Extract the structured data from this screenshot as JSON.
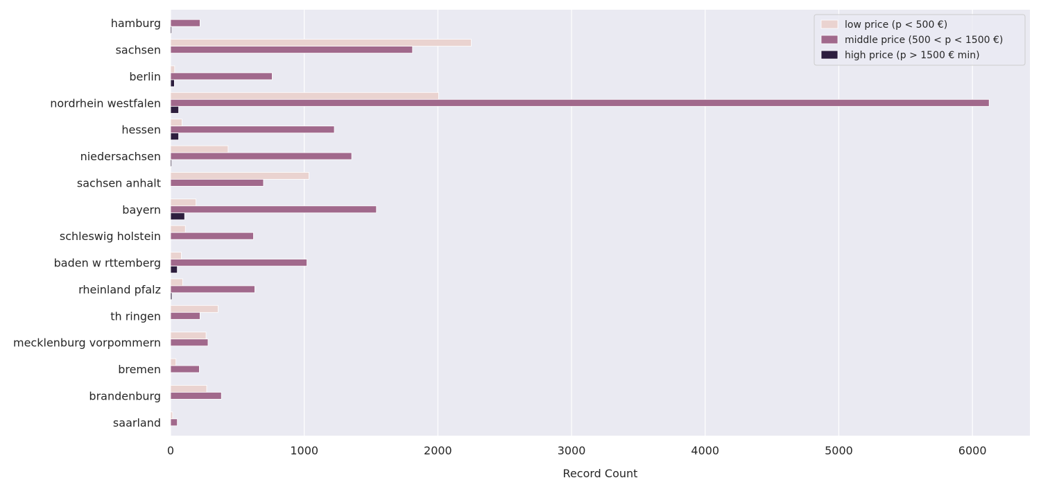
{
  "chart_data": {
    "type": "bar",
    "orientation": "horizontal",
    "categories": [
      "hamburg",
      "sachsen",
      "berlin",
      "nordrhein westfalen",
      "hessen",
      "niedersachsen",
      "sachsen anhalt",
      "bayern",
      "schleswig holstein",
      "baden w rttemberg",
      "rheinland pfalz",
      "th ringen",
      "mecklenburg vorpommern",
      "bremen",
      "brandenburg",
      "saarland"
    ],
    "series": [
      {
        "name": "low price (p < 500 €)",
        "color": "#ead3d0",
        "values": [
          0,
          2250,
          30,
          2005,
          85,
          430,
          1035,
          190,
          110,
          80,
          90,
          355,
          265,
          40,
          270,
          15
        ]
      },
      {
        "name": "middle price (500 < p < 1500 €)",
        "color": "#a1698c",
        "values": [
          220,
          1810,
          760,
          6125,
          1225,
          1355,
          695,
          1540,
          620,
          1020,
          630,
          220,
          280,
          215,
          380,
          50
        ]
      },
      {
        "name": "high price (p > 1500 € min)",
        "color": "#2d1e3e",
        "values": [
          8,
          0,
          28,
          60,
          60,
          8,
          0,
          105,
          0,
          50,
          10,
          0,
          0,
          0,
          0,
          0
        ]
      }
    ],
    "xlabel": "Record Count",
    "ylabel": "",
    "title": "",
    "xlim": [
      0,
      6430
    ],
    "xticks": [
      0,
      1000,
      2000,
      3000,
      4000,
      5000,
      6000
    ],
    "grid": true,
    "legend_position": "top-right",
    "background": "#eaeaf2"
  }
}
